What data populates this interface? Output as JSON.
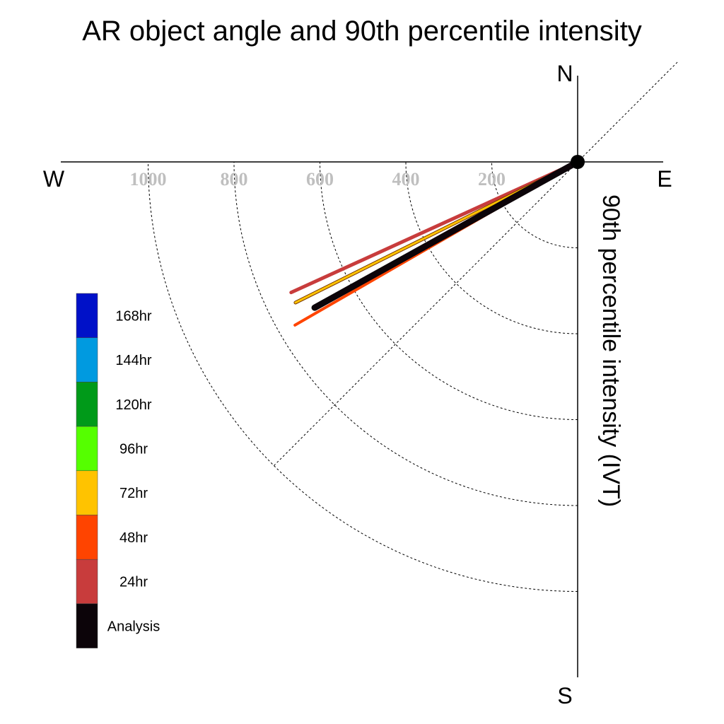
{
  "chart_data": {
    "type": "polar",
    "title": "AR object angle and 90th percentile intensity",
    "radial_axis_label": "90th percentile intensity (IVT)",
    "compass": {
      "north": "N",
      "south": "S",
      "east": "E",
      "west": "W"
    },
    "radial_ticks": [
      200,
      400,
      600,
      800,
      1000
    ],
    "radial_tick_labels": [
      "200",
      "400",
      "600",
      "800",
      "1000"
    ],
    "radial_max": 1200,
    "quadrant_shown": "south-west",
    "grid": true,
    "legend_placement": "left",
    "series": [
      {
        "name": "Analysis",
        "angle_deg": 241,
        "intensity": 700,
        "color": "#0c0409"
      },
      {
        "name": "24hr",
        "angle_deg": 245.5,
        "intensity": 733,
        "color": "#c83c3c"
      },
      {
        "name": "48hr",
        "angle_deg": 240,
        "intensity": 760,
        "color": "#ff4400"
      },
      {
        "name": "72hr",
        "angle_deg": 243.5,
        "intensity": 734,
        "color": "#ffc300"
      }
    ],
    "legend": [
      {
        "label": "168hr",
        "color": "#0011c8"
      },
      {
        "label": "144hr",
        "color": "#009ae0"
      },
      {
        "label": "120hr",
        "color": "#009a19"
      },
      {
        "label": "96hr",
        "color": "#55ff00"
      },
      {
        "label": "72hr",
        "color": "#ffc300"
      },
      {
        "label": "48hr",
        "color": "#ff4400"
      },
      {
        "label": "24hr",
        "color": "#c83c3c"
      },
      {
        "label": "Analysis",
        "color": "#0c0409"
      }
    ]
  }
}
